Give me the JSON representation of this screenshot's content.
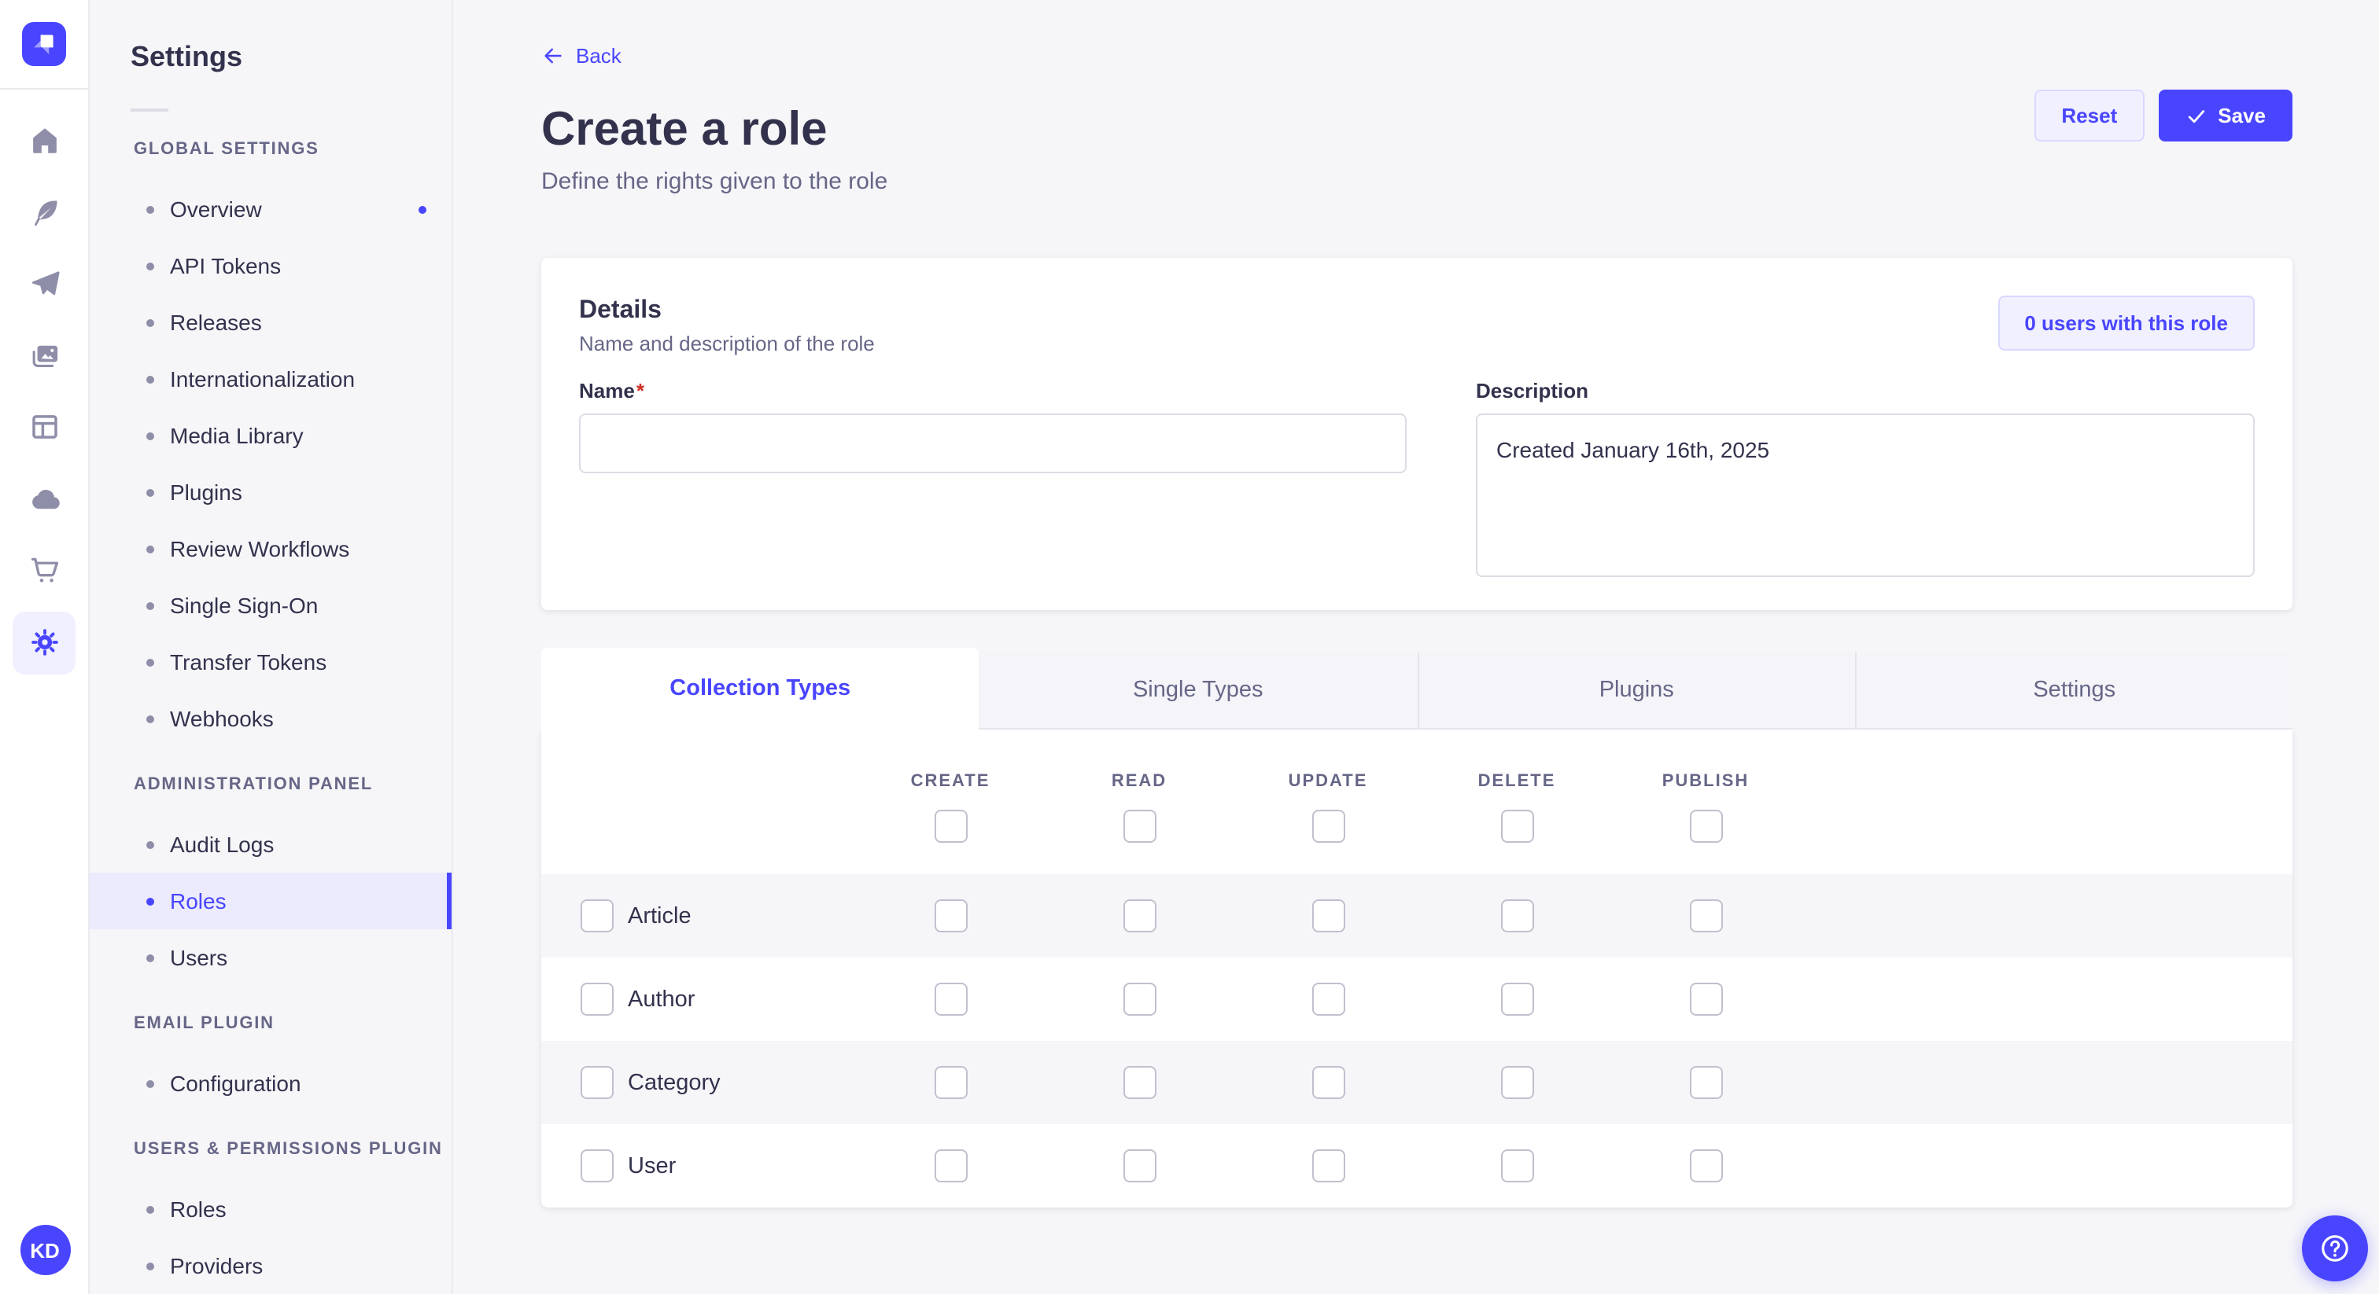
{
  "rail": {
    "logo_icon": "strapi-logo",
    "nav_items": [
      {
        "icon": "home-icon"
      },
      {
        "icon": "feather-icon"
      },
      {
        "icon": "paper-plane-icon"
      },
      {
        "icon": "images-icon"
      },
      {
        "icon": "layout-icon"
      },
      {
        "icon": "cloud-icon"
      },
      {
        "icon": "cart-icon"
      },
      {
        "icon": "gear-icon",
        "active": true
      }
    ],
    "avatar_initials": "KD"
  },
  "sidebar": {
    "title": "Settings",
    "sections": [
      {
        "label": "GLOBAL SETTINGS",
        "items": [
          {
            "label": "Overview",
            "notification": true
          },
          {
            "label": "API Tokens"
          },
          {
            "label": "Releases"
          },
          {
            "label": "Internationalization"
          },
          {
            "label": "Media Library"
          },
          {
            "label": "Plugins"
          },
          {
            "label": "Review Workflows"
          },
          {
            "label": "Single Sign-On"
          },
          {
            "label": "Transfer Tokens"
          },
          {
            "label": "Webhooks"
          }
        ]
      },
      {
        "label": "ADMINISTRATION PANEL",
        "items": [
          {
            "label": "Audit Logs"
          },
          {
            "label": "Roles",
            "active": true
          },
          {
            "label": "Users"
          }
        ]
      },
      {
        "label": "EMAIL PLUGIN",
        "items": [
          {
            "label": "Configuration"
          }
        ]
      },
      {
        "label": "USERS & PERMISSIONS PLUGIN",
        "items": [
          {
            "label": "Roles"
          },
          {
            "label": "Providers"
          }
        ]
      }
    ]
  },
  "header": {
    "back_label": "Back",
    "title": "Create a role",
    "subtitle": "Define the rights given to the role",
    "reset_label": "Reset",
    "save_label": "Save"
  },
  "details_card": {
    "title": "Details",
    "subtitle": "Name and description of the role",
    "users_button_label": "0 users with this role",
    "name_label": "Name",
    "required_mark": "*",
    "name_value": "",
    "description_label": "Description",
    "description_value": "Created January 16th, 2025"
  },
  "permissions_card": {
    "tabs": [
      {
        "label": "Collection Types",
        "active": true
      },
      {
        "label": "Single Types"
      },
      {
        "label": "Plugins"
      },
      {
        "label": "Settings"
      }
    ],
    "columns": [
      "CREATE",
      "READ",
      "UPDATE",
      "DELETE",
      "PUBLISH"
    ],
    "rows": [
      {
        "label": "Article"
      },
      {
        "label": "Author"
      },
      {
        "label": "Category"
      },
      {
        "label": "User"
      }
    ],
    "all_checkboxes_unchecked": true
  },
  "fab": {
    "icon": "question-circle-icon"
  },
  "colors": {
    "primary": "#4945ff",
    "primary_light": "#f0f0ff",
    "primary_border": "#d9d8ff",
    "background": "#f6f6f9",
    "text": "#32324d",
    "text_secondary": "#666687",
    "required": "#d02b20"
  }
}
